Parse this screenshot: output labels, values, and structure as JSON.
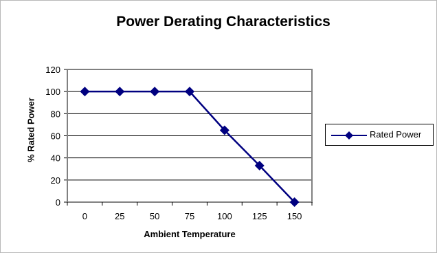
{
  "chart_data": {
    "type": "line",
    "title": "Power Derating Characteristics",
    "xlabel": "Ambient Temperature",
    "ylabel": "% Rated Power",
    "categories": [
      "0",
      "25",
      "50",
      "75",
      "100",
      "125",
      "150"
    ],
    "series": [
      {
        "name": "Rated Power",
        "values": [
          100,
          100,
          100,
          100,
          65,
          33,
          0
        ],
        "color": "#000080"
      }
    ],
    "ylim": [
      0,
      120
    ],
    "yticks": [
      "0",
      "20",
      "40",
      "60",
      "80",
      "100",
      "120"
    ],
    "grid": true,
    "legend": "right",
    "plot_background": "#ffffff",
    "axis_border_color": "#808080",
    "marker": "diamond"
  }
}
